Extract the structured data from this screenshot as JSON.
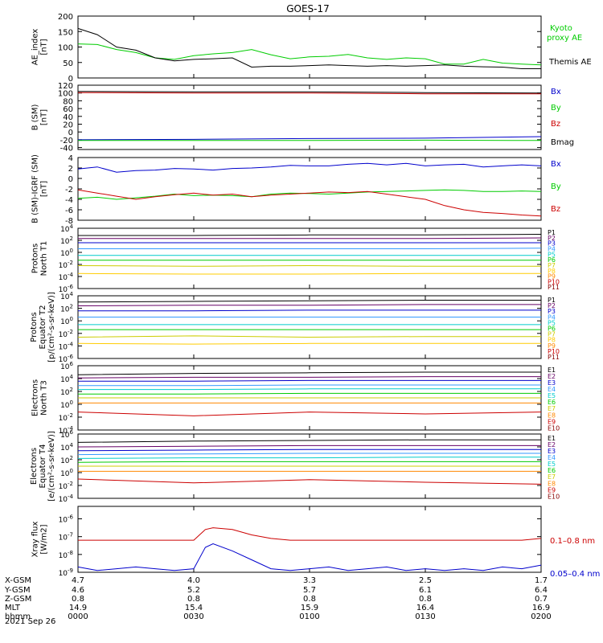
{
  "title": "GOES-17",
  "date_label": "2021 Sep 26",
  "orbit_table": {
    "row_labels": [
      "X-GSM",
      "Y-GSM",
      "Z-GSM",
      "MLT",
      "hhmm"
    ],
    "columns": [
      [
        "4.7",
        "4.6",
        "0.8",
        "14.9",
        "0000"
      ],
      [
        "4.0",
        "5.2",
        "0.8",
        "15.4",
        "0030"
      ],
      [
        "3.3",
        "5.7",
        "0.8",
        "15.9",
        "0100"
      ],
      [
        "2.5",
        "6.1",
        "0.8",
        "16.4",
        "0130"
      ],
      [
        "1.7",
        "6.4",
        "0.7",
        "16.9",
        "0200"
      ]
    ]
  },
  "chart_data": [
    {
      "type": "line",
      "ylabel": "AE_index [nT]",
      "ylim": [
        0,
        200
      ],
      "yticks": [
        "0",
        "50",
        "100",
        "150",
        "200"
      ],
      "x": [
        0,
        5,
        10,
        15,
        20,
        25,
        30,
        35,
        40,
        45,
        50,
        55,
        60,
        65,
        70,
        75,
        80,
        85,
        90,
        95,
        100,
        105,
        110,
        115,
        120
      ],
      "series": [
        {
          "name": "Kyoto proxy AE",
          "color": "#00cc00",
          "values": [
            110,
            108,
            92,
            82,
            65,
            60,
            72,
            78,
            82,
            92,
            75,
            62,
            68,
            70,
            76,
            65,
            60,
            65,
            62,
            45,
            45,
            60,
            48,
            45,
            42
          ]
        },
        {
          "name": "Themis AE",
          "color": "#000000",
          "values": [
            160,
            140,
            100,
            90,
            65,
            55,
            60,
            62,
            65,
            35,
            38,
            38,
            40,
            42,
            40,
            38,
            40,
            38,
            40,
            42,
            38,
            36,
            35,
            30,
            30
          ]
        }
      ]
    },
    {
      "type": "line",
      "ylabel": "B (SM) [nT]",
      "ylim": [
        -45,
        120
      ],
      "yticks": [
        "-40",
        "-20",
        "0",
        "20",
        "40",
        "60",
        "80",
        "100",
        "120"
      ],
      "x": [
        0,
        30,
        60,
        90,
        120
      ],
      "series": [
        {
          "name": "Bx",
          "color": "#0000cc",
          "values": [
            -20,
            -19,
            -17,
            -16,
            -12
          ]
        },
        {
          "name": "By",
          "color": "#00cc00",
          "values": [
            -22,
            -22,
            -22,
            -21,
            -22
          ]
        },
        {
          "name": "Bz",
          "color": "#cc0000",
          "values": [
            101,
            100,
            100,
            98,
            98
          ]
        },
        {
          "name": "Bmag",
          "color": "#000000",
          "values": [
            104,
            103,
            103,
            101,
            100
          ]
        }
      ]
    },
    {
      "type": "line",
      "ylabel": "B (SM)-IGRF (SM) [nT]",
      "ylim": [
        -8,
        4
      ],
      "yticks": [
        "-8",
        "-6",
        "-4",
        "-2",
        "0",
        "2",
        "4"
      ],
      "x": [
        0,
        5,
        10,
        15,
        20,
        25,
        30,
        35,
        40,
        45,
        50,
        55,
        60,
        65,
        70,
        75,
        80,
        85,
        90,
        95,
        100,
        105,
        110,
        115,
        120
      ],
      "series": [
        {
          "name": "Bx",
          "color": "#0000cc",
          "values": [
            1.8,
            2.2,
            1.2,
            1.5,
            1.6,
            1.9,
            1.8,
            1.6,
            1.9,
            2.0,
            2.2,
            2.5,
            2.4,
            2.4,
            2.7,
            2.9,
            2.6,
            2.9,
            2.4,
            2.6,
            2.7,
            2.2,
            2.4,
            2.6,
            2.4
          ]
        },
        {
          "name": "By",
          "color": "#00cc00",
          "values": [
            -3.8,
            -3.6,
            -4.0,
            -3.7,
            -3.4,
            -3.0,
            -3.3,
            -3.2,
            -3.3,
            -3.5,
            -3.0,
            -2.8,
            -2.9,
            -3.0,
            -2.8,
            -2.6,
            -2.5,
            -2.4,
            -2.3,
            -2.2,
            -2.3,
            -2.5,
            -2.5,
            -2.4,
            -2.5
          ]
        },
        {
          "name": "Bz",
          "color": "#cc0000",
          "values": [
            -2.2,
            -2.8,
            -3.4,
            -4.0,
            -3.5,
            -3.1,
            -2.8,
            -3.2,
            -3.0,
            -3.5,
            -3.2,
            -3.0,
            -2.8,
            -2.6,
            -2.7,
            -2.5,
            -3.0,
            -3.5,
            -4.0,
            -5.2,
            -6.0,
            -6.5,
            -6.7,
            -7.0,
            -7.2
          ]
        }
      ]
    },
    {
      "type": "line",
      "ylabel": "Protons North T1",
      "log_scale": true,
      "yticks": [
        "10^-6",
        "10^-4",
        "10^-2",
        "10^0",
        "10^2",
        "10^4"
      ],
      "ylim_log10": [
        -6,
        4
      ],
      "x": [
        0,
        30,
        60,
        90,
        120
      ],
      "series": [
        {
          "name": "P1",
          "color": "#000000",
          "log10_values": [
            2.8,
            2.8,
            2.9,
            2.9,
            3.0
          ]
        },
        {
          "name": "P2",
          "color": "#660066",
          "log10_values": [
            2.3,
            2.3,
            2.3,
            2.3,
            2.4
          ]
        },
        {
          "name": "P3",
          "color": "#0000cc",
          "log10_values": [
            1.6,
            1.6,
            1.6,
            1.6,
            1.6
          ]
        },
        {
          "name": "P4",
          "color": "#3399ff",
          "log10_values": [
            0.6,
            0.6,
            0.6,
            0.6,
            0.7
          ]
        },
        {
          "name": "P5",
          "color": "#00cccc",
          "log10_values": [
            -0.5,
            -0.5,
            -0.5,
            -0.5,
            -0.5
          ]
        },
        {
          "name": "P6",
          "color": "#00cc00",
          "log10_values": [
            -1.3,
            -1.3,
            -1.3,
            -1.3,
            -1.3
          ]
        },
        {
          "name": "P7",
          "color": "#cccc00",
          "log10_values": [
            -2.2,
            -2.3,
            -2.2,
            -2.3,
            -2.3
          ]
        },
        {
          "name": "P8",
          "color": "#ffcc00",
          "log10_values": [
            -3.5,
            -3.6,
            -3.6,
            -3.5,
            -3.5
          ]
        },
        {
          "name": "P9",
          "color": "#ff8800",
          "log10_values": []
        },
        {
          "name": "P10",
          "color": "#cc0000",
          "log10_values": []
        },
        {
          "name": "P11",
          "color": "#880000",
          "log10_values": []
        }
      ]
    },
    {
      "type": "line",
      "ylabel": "Protons Equator T2 [p/(cm²-s-sr-keV)]",
      "log_scale": true,
      "yticks": [
        "10^-6",
        "10^-4",
        "10^-2",
        "10^0",
        "10^2",
        "10^4"
      ],
      "ylim_log10": [
        -6,
        4
      ],
      "x": [
        0,
        30,
        60,
        90,
        120
      ],
      "series": [
        {
          "name": "P1",
          "color": "#000000",
          "log10_values": [
            3.0,
            3.1,
            3.2,
            3.3,
            3.3
          ]
        },
        {
          "name": "P2",
          "color": "#660066",
          "log10_values": [
            2.4,
            2.5,
            2.5,
            2.6,
            2.6
          ]
        },
        {
          "name": "P3",
          "color": "#0000cc",
          "log10_values": [
            1.6,
            1.6,
            1.7,
            1.7,
            1.7
          ]
        },
        {
          "name": "P4",
          "color": "#3399ff",
          "log10_values": [
            0.6,
            0.6,
            0.6,
            0.6,
            0.6
          ]
        },
        {
          "name": "P5",
          "color": "#00cccc",
          "log10_values": [
            -0.6,
            -0.6,
            -0.6,
            -0.6,
            -0.6
          ]
        },
        {
          "name": "P6",
          "color": "#00cc00",
          "log10_values": [
            -1.4,
            -1.4,
            -1.4,
            -1.4,
            -1.4
          ]
        },
        {
          "name": "P7",
          "color": "#cccc00",
          "log10_values": [
            -2.6,
            -2.4,
            -2.6,
            -2.5,
            -2.5
          ]
        },
        {
          "name": "P8",
          "color": "#ffcc00",
          "log10_values": [
            -3.6,
            -3.7,
            -3.6,
            -3.6,
            -3.6
          ]
        },
        {
          "name": "P9",
          "color": "#ff8800",
          "log10_values": []
        },
        {
          "name": "P10",
          "color": "#cc0000",
          "log10_values": []
        },
        {
          "name": "P11",
          "color": "#880000",
          "log10_values": []
        }
      ]
    },
    {
      "type": "line",
      "ylabel": "Electrons North T3",
      "log_scale": true,
      "yticks": [
        "10^-4",
        "10^-2",
        "10^0",
        "10^2",
        "10^4",
        "10^6"
      ],
      "ylim_log10": [
        -4,
        6
      ],
      "x": [
        0,
        30,
        60,
        90,
        120
      ],
      "series": [
        {
          "name": "E1",
          "color": "#000000",
          "log10_values": [
            4.6,
            4.8,
            4.9,
            5.0,
            5.0
          ]
        },
        {
          "name": "E2",
          "color": "#660066",
          "log10_values": [
            4.1,
            4.2,
            4.2,
            4.3,
            4.3
          ]
        },
        {
          "name": "E3",
          "color": "#0000cc",
          "log10_values": [
            3.6,
            3.6,
            3.7,
            3.7,
            3.7
          ]
        },
        {
          "name": "E4",
          "color": "#3399ff",
          "log10_values": [
            2.9,
            2.9,
            3.0,
            3.0,
            3.0
          ]
        },
        {
          "name": "E5",
          "color": "#00cccc",
          "log10_values": [
            2.3,
            2.3,
            2.4,
            2.4,
            2.4
          ]
        },
        {
          "name": "E6",
          "color": "#00cc00",
          "log10_values": [
            1.6,
            1.6,
            1.7,
            1.7,
            1.7
          ]
        },
        {
          "name": "E7",
          "color": "#cccc00",
          "log10_values": [
            1.0,
            1.0,
            1.0,
            1.0,
            1.0
          ]
        },
        {
          "name": "E8",
          "color": "#ff8800",
          "log10_values": [
            0.2,
            0.2,
            0.2,
            0.2,
            0.2
          ]
        },
        {
          "name": "E9",
          "color": "#cc0000",
          "log10_values": [
            -1.2,
            -1.8,
            -1.2,
            -1.5,
            -1.2
          ]
        },
        {
          "name": "E10",
          "color": "#880000",
          "log10_values": []
        }
      ]
    },
    {
      "type": "line",
      "ylabel": "Electrons Equator T4 [e/(cm²-s-sr-keV)]",
      "log_scale": true,
      "yticks": [
        "10^-4",
        "10^-2",
        "10^0",
        "10^2",
        "10^4",
        "10^6"
      ],
      "ylim_log10": [
        -4,
        6
      ],
      "x": [
        0,
        30,
        60,
        90,
        120
      ],
      "series": [
        {
          "name": "E1",
          "color": "#000000",
          "log10_values": [
            4.7,
            4.9,
            5.0,
            5.1,
            5.1
          ]
        },
        {
          "name": "E2",
          "color": "#660066",
          "log10_values": [
            4.0,
            4.1,
            4.2,
            4.2,
            4.2
          ]
        },
        {
          "name": "E3",
          "color": "#0000cc",
          "log10_values": [
            3.4,
            3.5,
            3.6,
            3.6,
            3.6
          ]
        },
        {
          "name": "E4",
          "color": "#3399ff",
          "log10_values": [
            2.8,
            2.9,
            3.0,
            3.0,
            3.0
          ]
        },
        {
          "name": "E5",
          "color": "#00cccc",
          "log10_values": [
            2.2,
            2.3,
            2.3,
            2.4,
            2.4
          ]
        },
        {
          "name": "E6",
          "color": "#00cc00",
          "log10_values": [
            1.6,
            1.7,
            1.7,
            1.7,
            1.7
          ]
        },
        {
          "name": "E7",
          "color": "#cccc00",
          "log10_values": [
            1.0,
            1.0,
            1.0,
            1.0,
            1.0
          ]
        },
        {
          "name": "E8",
          "color": "#ff8800",
          "log10_values": [
            0.2,
            0.2,
            0.2,
            0.2,
            0.2
          ]
        },
        {
          "name": "E9",
          "color": "#cc0000",
          "log10_values": [
            -1.0,
            -1.6,
            -1.1,
            -1.5,
            -1.8
          ]
        },
        {
          "name": "E10",
          "color": "#880000",
          "log10_values": []
        }
      ]
    },
    {
      "type": "line",
      "ylabel": "Xray flux [W/m2]",
      "log_scale": true,
      "yticks": [
        "10^-9",
        "10^-8",
        "10^-7",
        "10^-6"
      ],
      "ylim_log10": [
        -9,
        -5.3
      ],
      "x": [
        0,
        5,
        10,
        15,
        20,
        25,
        30,
        33,
        35,
        40,
        45,
        50,
        55,
        60,
        65,
        70,
        75,
        80,
        85,
        90,
        95,
        100,
        105,
        110,
        115,
        120
      ],
      "series": [
        {
          "name": "0.1–0.8 nm",
          "color": "#cc0000",
          "log10_values": [
            -7.2,
            -7.2,
            -7.2,
            -7.2,
            -7.2,
            -7.2,
            -7.2,
            -6.6,
            -6.5,
            -6.6,
            -6.9,
            -7.1,
            -7.2,
            -7.2,
            -7.2,
            -7.2,
            -7.2,
            -7.2,
            -7.2,
            -7.2,
            -7.2,
            -7.2,
            -7.2,
            -7.2,
            -7.2,
            -7.1
          ]
        },
        {
          "name": "0.05–0.4 nm",
          "color": "#0000cc",
          "log10_values": [
            -8.7,
            -8.9,
            -8.8,
            -8.7,
            -8.8,
            -8.9,
            -8.8,
            -7.6,
            -7.4,
            -7.8,
            -8.3,
            -8.8,
            -8.9,
            -8.8,
            -8.7,
            -8.9,
            -8.8,
            -8.7,
            -8.9,
            -8.8,
            -8.9,
            -8.8,
            -8.9,
            -8.7,
            -8.8,
            -8.6
          ]
        }
      ]
    }
  ],
  "ylabels_display": [
    [
      "AE_index",
      "[nT]"
    ],
    [
      "B (SM)",
      "[nT]"
    ],
    [
      "B (SM)-IGRF (SM)",
      "[nT]"
    ],
    [
      "Protons",
      "North T1"
    ],
    [
      "Protons",
      "Equator T2",
      "[p/(cm²-s-sr-keV)]"
    ],
    [
      "Electrons",
      "North T3"
    ],
    [
      "Electrons",
      "Equator T4",
      "[e/(cm²-s-sr-keV)]"
    ],
    [
      "Xray flux",
      "[W/m2]"
    ]
  ],
  "legend_text": {
    "ae": [
      "Kyoto",
      "proxy AE",
      "Themis AE"
    ],
    "b": [
      "Bx",
      "By",
      "Bz",
      "Bmag"
    ],
    "bi": [
      "Bx",
      "By",
      "Bz"
    ],
    "xray": [
      "0.1–0.8 nm",
      "0.05–0.4 nm"
    ]
  },
  "colors": {
    "green": "#00cc00",
    "black": "#000000",
    "blue": "#0000cc",
    "red": "#cc0000"
  }
}
